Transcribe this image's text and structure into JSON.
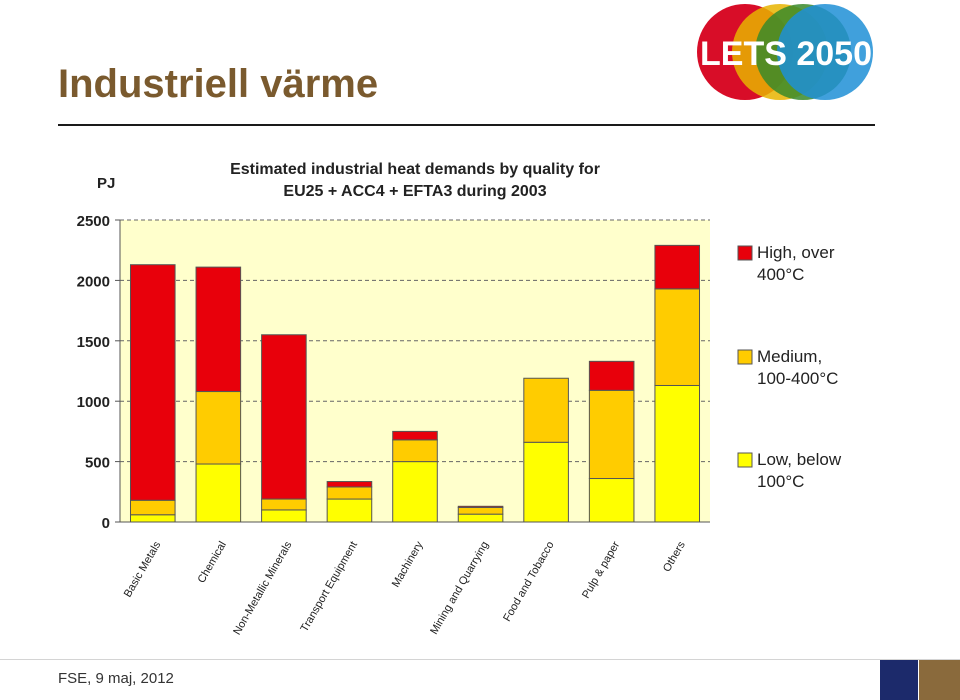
{
  "slide": {
    "title": "Industriell värme",
    "footer": "FSE, 9 maj, 2012"
  },
  "logo": {
    "text": "LETS 2050"
  },
  "colors": {
    "title": "#7a5a2e",
    "high": "#e8000b",
    "medium": "#ffcc00",
    "low": "#ffff00",
    "plot_bg": "#ffffcc",
    "footer_blue": "#1c2a6b",
    "footer_brown": "#8a6a3c"
  },
  "chart_data": {
    "type": "bar",
    "stacked": true,
    "title_lines": [
      "Estimated industrial heat demands by quality for",
      "EU25 + ACC4 + EFTA3 during 2003"
    ],
    "ylabel": "PJ",
    "ylim": [
      0,
      2500
    ],
    "yticks": [
      "0",
      "500",
      "1000",
      "1500",
      "2000",
      "2500"
    ],
    "grid": "horizontal dashed",
    "legend_position": "right",
    "categories": [
      "Basic Metals",
      "Chemical",
      "Non-Metallic Minerals",
      "Transport Equipment",
      "Machinery",
      "Mining and Quarrying",
      "Food and Tobacco",
      "Pulp & paper",
      "Others"
    ],
    "series": [
      {
        "name": "Low, below 100°C",
        "legend_lines": [
          "Low, below",
          "100°C"
        ],
        "color": "#ffff00",
        "values": [
          60,
          480,
          100,
          190,
          500,
          65,
          660,
          360,
          1130
        ]
      },
      {
        "name": "Medium, 100-400°C",
        "legend_lines": [
          "Medium,",
          "100-400°C"
        ],
        "color": "#ffcc00",
        "values": [
          120,
          600,
          90,
          100,
          180,
          55,
          530,
          730,
          800
        ]
      },
      {
        "name": "High, over 400°C",
        "legend_lines": [
          "High, over",
          "400°C"
        ],
        "color": "#e8000b",
        "values": [
          1950,
          1030,
          1360,
          45,
          70,
          10,
          0,
          240,
          360
        ]
      }
    ]
  }
}
